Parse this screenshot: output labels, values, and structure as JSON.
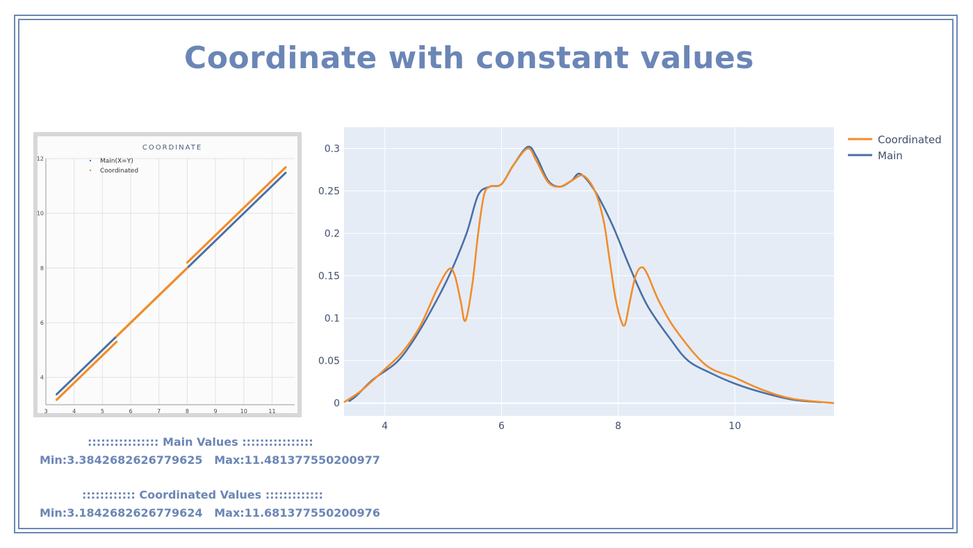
{
  "title": "Coordinate with constant values",
  "colors": {
    "accent": "#6b86b6",
    "main": "#4a6fa5",
    "coordinated": "#f28c28",
    "plot_bg": "#e5ecf6"
  },
  "stats": {
    "main_header": ":::::::::::::::: Main Values ::::::::::::::::",
    "main_minmax": "Min:3.3842682626779625   Max:11.481377550200977",
    "coord_header": ":::::::::::: Coordinated Values :::::::::::::",
    "coord_minmax": "Min:3.1842682626779624   Max:11.681377550200976"
  },
  "chart_data": [
    {
      "type": "scatter",
      "title": "COORDINATE",
      "legend": [
        "Main(X=Y)",
        "Coordinated"
      ],
      "xlim": [
        3,
        11.8
      ],
      "ylim": [
        3,
        12
      ],
      "x_ticks": [
        3,
        4,
        5,
        6,
        7,
        8,
        9,
        10,
        11
      ],
      "y_ticks": [
        4,
        6,
        8,
        10,
        12
      ],
      "series": [
        {
          "name": "Main(X=Y)",
          "segments": [
            {
              "x": [
                3.38,
                11.48
              ],
              "y": [
                3.38,
                11.48
              ]
            }
          ]
        },
        {
          "name": "Coordinated",
          "segments": [
            {
              "x": [
                3.38,
                5.5
              ],
              "y": [
                3.18,
                5.3
              ]
            },
            {
              "x": [
                5.5,
                8.0
              ],
              "y": [
                5.5,
                8.0
              ]
            },
            {
              "x": [
                8.0,
                11.48
              ],
              "y": [
                8.2,
                11.68
              ]
            }
          ]
        }
      ]
    },
    {
      "type": "line",
      "title": "",
      "xlim": [
        3.3,
        11.7
      ],
      "ylim": [
        -0.015,
        0.325
      ],
      "x_ticks": [
        4,
        6,
        8,
        10
      ],
      "y_ticks": [
        0,
        0.05,
        0.1,
        0.15,
        0.2,
        0.25,
        0.3
      ],
      "y_tick_labels": [
        "0",
        "0.05",
        "0.1",
        "0.15",
        "0.2",
        "0.25",
        "0.3"
      ],
      "series": [
        {
          "name": "Coordinated",
          "x": [
            3.3,
            3.6,
            4.0,
            4.3,
            4.6,
            4.9,
            5.1,
            5.2,
            5.3,
            5.38,
            5.5,
            5.6,
            5.7,
            5.8,
            6.0,
            6.2,
            6.45,
            6.6,
            6.8,
            7.0,
            7.2,
            7.4,
            7.6,
            7.75,
            7.85,
            7.95,
            8.05,
            8.12,
            8.2,
            8.3,
            8.4,
            8.5,
            8.7,
            9.0,
            9.5,
            10.0,
            10.5,
            11.0,
            11.7
          ],
          "y": [
            0.001,
            0.015,
            0.04,
            0.06,
            0.09,
            0.135,
            0.158,
            0.15,
            0.12,
            0.097,
            0.14,
            0.2,
            0.245,
            0.255,
            0.258,
            0.28,
            0.3,
            0.285,
            0.26,
            0.255,
            0.262,
            0.268,
            0.25,
            0.215,
            0.17,
            0.125,
            0.097,
            0.093,
            0.12,
            0.15,
            0.16,
            0.152,
            0.12,
            0.085,
            0.045,
            0.03,
            0.015,
            0.005,
            0.0
          ]
        },
        {
          "name": "Main",
          "x": [
            3.38,
            3.5,
            3.8,
            4.2,
            4.5,
            4.8,
            5.1,
            5.4,
            5.6,
            5.8,
            6.0,
            6.2,
            6.45,
            6.6,
            6.8,
            7.0,
            7.2,
            7.35,
            7.6,
            7.9,
            8.2,
            8.5,
            8.9,
            9.2,
            9.6,
            10.0,
            10.5,
            11.0,
            11.48
          ],
          "y": [
            0.002,
            0.008,
            0.028,
            0.048,
            0.075,
            0.11,
            0.15,
            0.2,
            0.245,
            0.255,
            0.258,
            0.28,
            0.302,
            0.29,
            0.262,
            0.255,
            0.262,
            0.27,
            0.25,
            0.21,
            0.16,
            0.115,
            0.075,
            0.05,
            0.035,
            0.023,
            0.012,
            0.004,
            0.001
          ]
        }
      ],
      "legend": [
        "Coordinated",
        "Main"
      ]
    }
  ]
}
